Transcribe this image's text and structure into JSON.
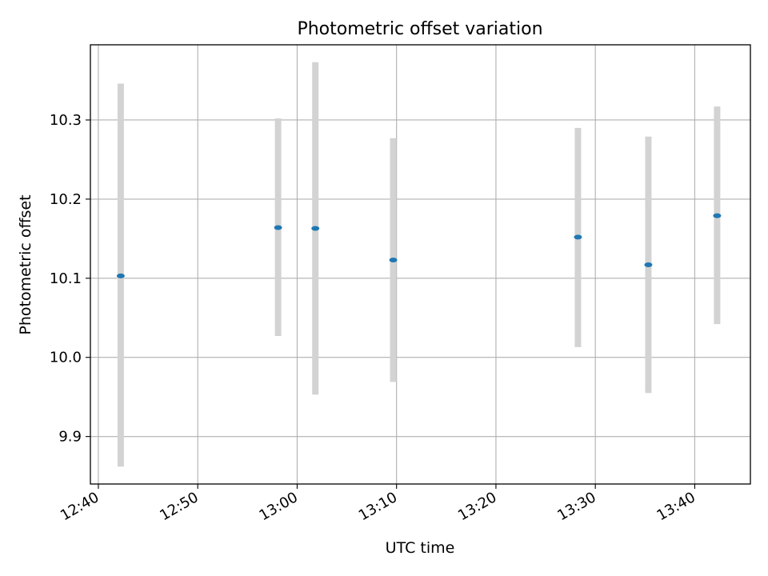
{
  "chart_data": {
    "type": "scatter",
    "title": "Photometric offset variation",
    "xlabel": "UTC time",
    "ylabel": "Photometric offset",
    "x_axis_kind": "time",
    "xlim": [
      "12:39:12",
      "13:45:36"
    ],
    "ylim": [
      9.84,
      10.395
    ],
    "grid": true,
    "x_ticks": [
      "12:40",
      "12:50",
      "13:00",
      "13:10",
      "13:20",
      "13:30",
      "13:40"
    ],
    "y_ticks": [
      "9.9",
      "10.0",
      "10.1",
      "10.2",
      "10.3"
    ],
    "colors": {
      "point": "#1f77b4",
      "errorbar": "#d3d3d3",
      "grid": "#b0b0b0"
    },
    "points": [
      {
        "x": "12:42:15",
        "y": 10.103,
        "y_low": 9.862,
        "y_high": 10.346
      },
      {
        "x": "12:58:05",
        "y": 10.164,
        "y_low": 10.027,
        "y_high": 10.302
      },
      {
        "x": "13:01:50",
        "y": 10.163,
        "y_low": 9.953,
        "y_high": 10.373
      },
      {
        "x": "13:09:40",
        "y": 10.123,
        "y_low": 9.969,
        "y_high": 10.277
      },
      {
        "x": "13:28:15",
        "y": 10.152,
        "y_low": 10.013,
        "y_high": 10.29
      },
      {
        "x": "13:35:20",
        "y": 10.117,
        "y_low": 9.955,
        "y_high": 10.279
      },
      {
        "x": "13:42:15",
        "y": 10.179,
        "y_low": 10.042,
        "y_high": 10.317
      }
    ]
  }
}
